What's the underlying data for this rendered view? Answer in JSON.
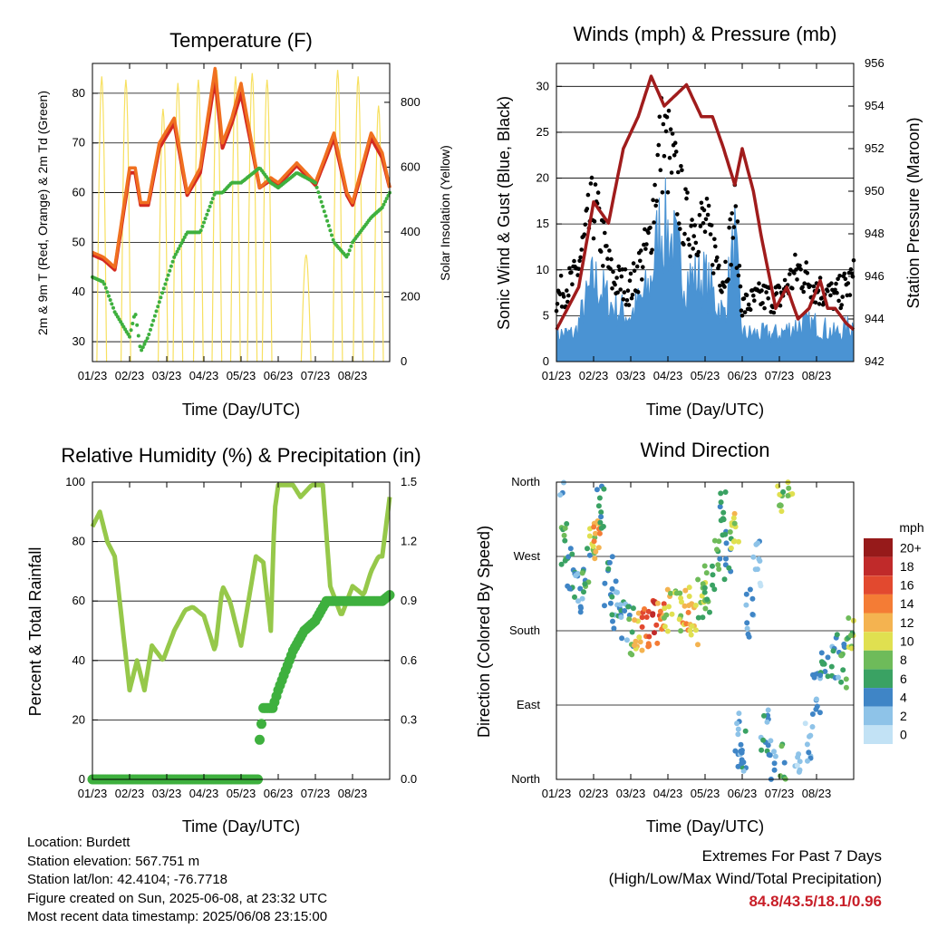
{
  "x_ticks": [
    "01/23",
    "02/23",
    "03/23",
    "04/23",
    "05/23",
    "06/23",
    "07/23",
    "08/23"
  ],
  "x_title": "Time (Day/UTC)",
  "colors": {
    "temp_2m": "#d42a20",
    "temp_9m": "#f07020",
    "dewpoint": "#3eb03e",
    "solar": "#f7e060",
    "wind": "#4a93d3",
    "gust": "#000000",
    "pressure": "#a01c1c",
    "rh": "#96c84a",
    "precip": "#3eb03e"
  },
  "panels": {
    "temperature": {
      "title": "Temperature (F)",
      "ylabel_left": "2m & 9m T (Red, Orange) & 2m Td (Green)",
      "ylabel_right": "Solar Insolation (Yellow)"
    },
    "winds": {
      "title": "Winds (mph) & Pressure (mb)",
      "ylabel_left": "Sonic Wind & Gust (Blue, Black)",
      "ylabel_right": "Station Pressure (Maroon)"
    },
    "humidity": {
      "title": "Relative Humidity (%) & Precipitation (in)",
      "ylabel_left": "Percent & Total Rainfall"
    },
    "direction": {
      "title": "Wind Direction",
      "ylabel_left": "Direction (Colored By Speed)",
      "legend_title": "mph"
    }
  },
  "info": {
    "location": "Location: Burdett",
    "elevation": "Station elevation: 567.751 m",
    "latlon": "Station lat/lon: 42.4104; -76.7718",
    "created": "Figure created on Sun, 2025-06-08, at 23:32 UTC",
    "recent": "Most recent data timestamp: 2025/06/08 23:15:00"
  },
  "extremes": {
    "line1": "Extremes For Past 7 Days",
    "line2": "(High/Low/Max Wind/Total Precipitation)",
    "values": "84.8/43.5/18.1/0.96"
  },
  "chart_data": [
    {
      "type": "line",
      "title": "Temperature (F)",
      "xlabel": "Time (Day/UTC)",
      "ylabel": "2m & 9m T (Red, Orange) & 2m Td (Green)",
      "y2label": "Solar Insolation (Yellow)",
      "x": [
        0,
        0.3,
        0.6,
        1.0,
        1.15,
        1.3,
        1.5,
        1.8,
        2.2,
        2.55,
        2.9,
        3.3,
        3.5,
        3.75,
        4.0,
        4.5,
        4.8,
        5.0,
        5.5,
        6.0,
        6.5,
        6.85,
        7.0,
        7.5,
        7.8,
        8.0
      ],
      "ylim": [
        26,
        86
      ],
      "yticks": [
        30,
        40,
        50,
        60,
        70,
        80
      ],
      "y2lim": [
        0,
        920
      ],
      "y2ticks": [
        0,
        200,
        400,
        600,
        800
      ],
      "series": [
        {
          "name": "2m T",
          "axis": "left",
          "values": [
            48,
            47,
            45,
            65,
            65,
            58,
            58,
            70,
            75,
            60,
            65,
            85,
            70,
            75,
            82,
            61,
            63,
            62,
            66,
            62,
            72,
            60,
            58,
            72,
            68,
            61
          ]
        },
        {
          "name": "9m T",
          "axis": "left",
          "values": [
            47.5,
            46.5,
            44.5,
            64,
            64,
            57.5,
            57.5,
            69,
            74,
            59.5,
            64,
            83,
            69,
            74,
            80,
            61,
            62.5,
            61.5,
            65.5,
            61.5,
            71,
            59.5,
            57.5,
            71,
            67,
            61
          ]
        },
        {
          "name": "2m Td",
          "axis": "left",
          "values": [
            43,
            42,
            36,
            31,
            36,
            28,
            31,
            38,
            47,
            52,
            52,
            60,
            60,
            62,
            62,
            65,
            62,
            61,
            64,
            62,
            50,
            47,
            50,
            55,
            57,
            60
          ]
        }
      ],
      "solar_peaks": [
        {
          "x": 0.25,
          "v": 880
        },
        {
          "x": 0.9,
          "v": 870
        },
        {
          "x": 1.9,
          "v": 780
        },
        {
          "x": 2.3,
          "v": 860
        },
        {
          "x": 2.85,
          "v": 870
        },
        {
          "x": 3.35,
          "v": 900
        },
        {
          "x": 3.85,
          "v": 880
        },
        {
          "x": 4.3,
          "v": 890
        },
        {
          "x": 4.7,
          "v": 870
        },
        {
          "x": 5.75,
          "v": 330
        },
        {
          "x": 6.6,
          "v": 900
        },
        {
          "x": 7.15,
          "v": 880
        },
        {
          "x": 7.7,
          "v": 790
        }
      ]
    },
    {
      "type": "line",
      "title": "Winds (mph) & Pressure (mb)",
      "xlabel": "Time (Day/UTC)",
      "ylabel": "Sonic Wind & Gust (Blue, Black)",
      "y2label": "Station Pressure (Maroon)",
      "ylim": [
        0,
        32.5
      ],
      "yticks": [
        0,
        5,
        10,
        15,
        20,
        25,
        30
      ],
      "y2lim": [
        942,
        956
      ],
      "y2ticks": [
        942,
        944,
        946,
        948,
        950,
        952,
        954,
        956
      ],
      "series": [
        {
          "name": "Wind",
          "axis": "left",
          "x": [
            0,
            0.5,
            1.0,
            1.5,
            2.0,
            2.5,
            2.8,
            3.0,
            3.5,
            4.0,
            4.5,
            4.8,
            5.0,
            5.5,
            6.0,
            6.5,
            7.0,
            7.5,
            8.0
          ],
          "values": [
            3,
            3,
            9,
            6,
            5,
            8,
            15,
            14,
            9,
            9,
            5,
            13,
            3,
            3,
            3,
            4,
            4,
            3,
            4
          ]
        },
        {
          "name": "Gust",
          "axis": "left",
          "x": [
            0,
            0.5,
            1.0,
            1.5,
            2.0,
            2.5,
            2.8,
            3.0,
            3.5,
            4.0,
            4.5,
            4.8,
            5.0,
            5.5,
            6.0,
            6.5,
            7.0,
            7.5,
            8.0
          ],
          "values": [
            7,
            9,
            17,
            9,
            8,
            13,
            24,
            23,
            15,
            15,
            9,
            16,
            6,
            7,
            7,
            10,
            8,
            7,
            9
          ]
        },
        {
          "name": "Pressure",
          "axis": "right",
          "x": [
            0,
            0.6,
            0.8,
            1.0,
            1.4,
            1.8,
            2.2,
            2.55,
            2.9,
            3.2,
            3.5,
            3.9,
            4.2,
            4.5,
            4.8,
            5.0,
            5.3,
            5.5,
            5.9,
            6.2,
            6.5,
            6.8,
            7.1,
            7.3,
            7.5,
            7.8,
            8.0
          ],
          "values": [
            943.5,
            945.5,
            947.5,
            949.5,
            948.5,
            952,
            953.5,
            955.4,
            954,
            954.5,
            955,
            953.5,
            953.5,
            952,
            950.3,
            952,
            950,
            948,
            944.5,
            945.5,
            944,
            944.5,
            945.8,
            944.5,
            944.5,
            943.8,
            943.5
          ]
        }
      ]
    },
    {
      "type": "line",
      "title": "Relative Humidity (%) & Precipitation (in)",
      "xlabel": "Time (Day/UTC)",
      "ylabel": "Percent & Total Rainfall",
      "ylim": [
        0,
        100
      ],
      "yticks": [
        0,
        20,
        40,
        60,
        80,
        100
      ],
      "y2lim": [
        0,
        1.5
      ],
      "y2ticks": [
        0.0,
        0.3,
        0.6,
        0.9,
        1.2,
        1.5
      ],
      "series": [
        {
          "name": "Relative Humidity",
          "axis": "left",
          "x": [
            0,
            0.2,
            0.4,
            0.6,
            1.0,
            1.2,
            1.4,
            1.6,
            1.9,
            2.2,
            2.5,
            2.7,
            3.0,
            3.3,
            3.5,
            3.7,
            4.0,
            4.2,
            4.4,
            4.6,
            4.8,
            4.9,
            5.0,
            5.4,
            5.6,
            5.9,
            6.2,
            6.4,
            6.7,
            7.0,
            7.3,
            7.5,
            7.7,
            7.8,
            8.0
          ],
          "values": [
            85,
            90,
            80,
            75,
            30,
            40,
            30,
            45,
            40,
            50,
            57,
            58,
            55,
            43,
            65,
            60,
            45,
            60,
            75,
            73,
            50,
            90,
            99,
            99,
            95,
            99,
            99,
            65,
            55,
            65,
            62,
            70,
            75,
            75,
            95
          ]
        },
        {
          "name": "Precipitation",
          "axis": "right",
          "x": [
            0,
            4.45,
            4.5,
            4.6,
            4.85,
            5.0,
            5.2,
            5.4,
            5.7,
            6.0,
            6.3,
            7.5,
            7.8,
            8.0
          ],
          "values": [
            0,
            0,
            0.2,
            0.36,
            0.36,
            0.45,
            0.55,
            0.65,
            0.75,
            0.8,
            0.9,
            0.9,
            0.9,
            0.93
          ]
        }
      ]
    },
    {
      "type": "scatter",
      "title": "Wind Direction",
      "xlabel": "Time (Day/UTC)",
      "ylabel": "Direction (Colored By Speed)",
      "yticks": [
        "North",
        "East",
        "South",
        "West",
        "North"
      ],
      "yvals": [
        0,
        90,
        180,
        270,
        360
      ],
      "colorbar": {
        "title": "mph",
        "labels": [
          "0",
          "2",
          "4",
          "6",
          "8",
          "10",
          "12",
          "14",
          "16",
          "18",
          "20+"
        ],
        "colors": [
          "#c2e2f5",
          "#8ec3e8",
          "#3f85c6",
          "#3aa263",
          "#6ebb5a",
          "#e0e050",
          "#f4b350",
          "#f47c35",
          "#e2492f",
          "#c02a2a",
          "#961a1a"
        ]
      },
      "clusters": [
        {
          "x": 0.1,
          "y": 350,
          "s": 4
        },
        {
          "x": 0.2,
          "y": 285,
          "s": 6
        },
        {
          "x": 0.4,
          "y": 250,
          "s": 4
        },
        {
          "x": 0.6,
          "y": 220,
          "s": 3
        },
        {
          "x": 0.8,
          "y": 250,
          "s": 6
        },
        {
          "x": 1.0,
          "y": 295,
          "s": 10
        },
        {
          "x": 1.1,
          "y": 290,
          "s": 12
        },
        {
          "x": 1.2,
          "y": 330,
          "s": 5
        },
        {
          "x": 1.4,
          "y": 240,
          "s": 5
        },
        {
          "x": 1.6,
          "y": 210,
          "s": 4
        },
        {
          "x": 1.8,
          "y": 190,
          "s": 4
        },
        {
          "x": 2.0,
          "y": 180,
          "s": 6
        },
        {
          "x": 2.2,
          "y": 185,
          "s": 11
        },
        {
          "x": 2.4,
          "y": 190,
          "s": 15
        },
        {
          "x": 2.6,
          "y": 195,
          "s": 17
        },
        {
          "x": 2.8,
          "y": 190,
          "s": 14
        },
        {
          "x": 3.0,
          "y": 200,
          "s": 10
        },
        {
          "x": 3.3,
          "y": 205,
          "s": 9
        },
        {
          "x": 3.5,
          "y": 210,
          "s": 12
        },
        {
          "x": 3.7,
          "y": 190,
          "s": 11
        },
        {
          "x": 3.9,
          "y": 220,
          "s": 8
        },
        {
          "x": 4.1,
          "y": 230,
          "s": 7
        },
        {
          "x": 4.3,
          "y": 260,
          "s": 6
        },
        {
          "x": 4.5,
          "y": 320,
          "s": 5
        },
        {
          "x": 4.6,
          "y": 270,
          "s": 6
        },
        {
          "x": 4.8,
          "y": 300,
          "s": 10
        },
        {
          "x": 4.9,
          "y": 60,
          "s": 3
        },
        {
          "x": 5.0,
          "y": 30,
          "s": 4
        },
        {
          "x": 5.2,
          "y": 200,
          "s": 3
        },
        {
          "x": 5.4,
          "y": 260,
          "s": 2
        },
        {
          "x": 5.6,
          "y": 60,
          "s": 4
        },
        {
          "x": 5.8,
          "y": 20,
          "s": 3
        },
        {
          "x": 6.0,
          "y": 340,
          "s": 8
        },
        {
          "x": 6.1,
          "y": 20,
          "s": 6
        },
        {
          "x": 6.3,
          "y": 350,
          "s": 9
        },
        {
          "x": 6.5,
          "y": 10,
          "s": 2
        },
        {
          "x": 6.8,
          "y": 50,
          "s": 2
        },
        {
          "x": 7.0,
          "y": 110,
          "s": 4
        },
        {
          "x": 7.2,
          "y": 130,
          "s": 5
        },
        {
          "x": 7.5,
          "y": 150,
          "s": 4
        },
        {
          "x": 7.7,
          "y": 140,
          "s": 6
        },
        {
          "x": 7.9,
          "y": 170,
          "s": 8
        }
      ]
    }
  ]
}
